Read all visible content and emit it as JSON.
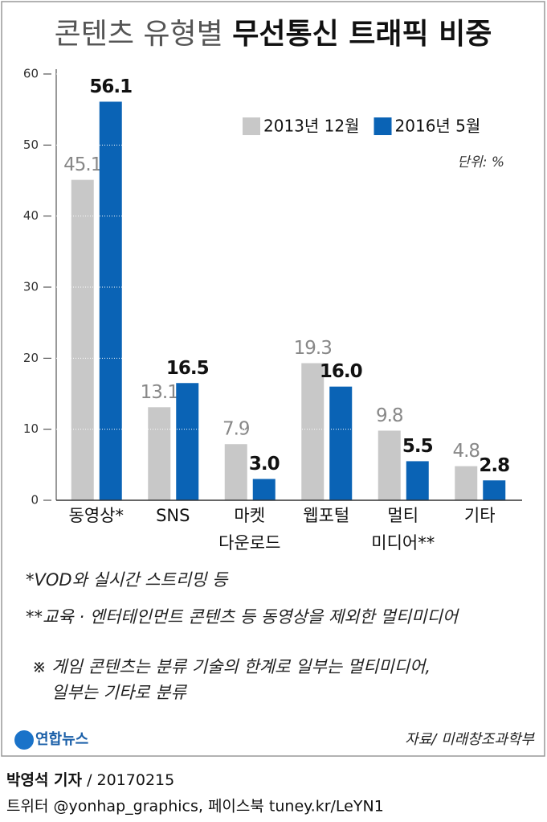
{
  "chart_data": {
    "type": "bar",
    "title": "콘텐츠 유형별",
    "title_bold": "무선통신 트래픽 비중",
    "unit": "단위: %",
    "categories": [
      [
        "동영상*"
      ],
      [
        "SNS"
      ],
      [
        "마켓",
        "다운로드"
      ],
      [
        "웹포털"
      ],
      [
        "멀티",
        "미디어**"
      ],
      [
        "기타"
      ]
    ],
    "series": [
      {
        "name": "2013년 12월",
        "color": "#c8c8c8",
        "values": [
          45.1,
          13.1,
          7.9,
          19.3,
          9.8,
          4.8
        ],
        "value_labels": [
          "45.1",
          "13.1",
          "7.9",
          "19.3",
          "9.8",
          "4.8"
        ]
      },
      {
        "name": "2016년 5월",
        "color": "#0a63b5",
        "values": [
          56.1,
          16.5,
          3,
          16,
          5.5,
          2.8
        ],
        "value_labels": [
          "56.1",
          "16.5",
          "3.0",
          "16.0",
          "5.5",
          "2.8"
        ]
      }
    ],
    "ylim": [
      0,
      60
    ],
    "yticks": [
      0,
      10,
      20,
      30,
      40,
      50,
      60
    ],
    "grid": true,
    "notes": [
      "*VOD와 실시간 스트리밍 등",
      "**교육 · 엔터테인먼트 콘텐츠 등 동영상을 제외한 멀티미디어",
      "※ 게임 콘텐츠는 분류 기술의 한계로 일부는 멀티미디어,",
      "일부는 기타로 분류"
    ],
    "logo": "연합뉴스",
    "source": "자료/ 미래창조과학부",
    "byline": "박영석 기자",
    "date": "/ 20170215",
    "social": "트위터 @yonhap_graphics, 페이스북 tuney.kr/LeYN1"
  }
}
